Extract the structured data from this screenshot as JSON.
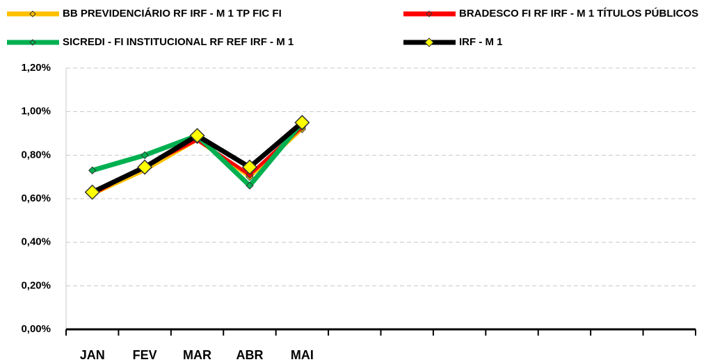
{
  "chart_data": {
    "type": "line",
    "categories": [
      "JAN",
      "FEV",
      "MAR",
      "ABR",
      "MAI",
      null,
      null,
      null,
      null,
      null,
      null,
      null
    ],
    "series": [
      {
        "name": "BB PREVIDENCIÁRIO RF IRF - M 1 TP FIC FI",
        "color": "#FFC000",
        "values": [
          0.62,
          0.73,
          0.87,
          0.7,
          0.92,
          null,
          null,
          null,
          null,
          null,
          null,
          null
        ]
      },
      {
        "name": "BRADESCO FI RF IRF - M 1 TÍTULOS PÚBLICOS",
        "color": "#FF0000",
        "values": [
          0.62,
          0.75,
          0.87,
          0.71,
          0.93,
          null,
          null,
          null,
          null,
          null,
          null,
          null
        ]
      },
      {
        "name": "SICREDI - FI INSTITUCIONAL RF REF IRF - M 1",
        "color": "#00B050",
        "values": [
          0.73,
          0.8,
          0.89,
          0.66,
          0.95,
          null,
          null,
          null,
          null,
          null,
          null,
          null
        ]
      },
      {
        "name": "IRF - M 1",
        "color": "#000000",
        "values": [
          0.63,
          0.745,
          0.89,
          0.745,
          0.95,
          null,
          null,
          null,
          null,
          null,
          null,
          null
        ]
      }
    ],
    "ylim": [
      0,
      1.2
    ],
    "yticks": [
      {
        "value": 0,
        "label": "0,00%"
      },
      {
        "value": 0.2,
        "label": "0,20%"
      },
      {
        "value": 0.4,
        "label": "0,40%"
      },
      {
        "value": 0.6,
        "label": "0,60%"
      },
      {
        "value": 0.8,
        "label": "0,80%"
      },
      {
        "value": 1.0,
        "label": "1,00%"
      },
      {
        "value": 1.2,
        "label": "1,20%"
      }
    ],
    "grid": true,
    "legend": "top"
  }
}
